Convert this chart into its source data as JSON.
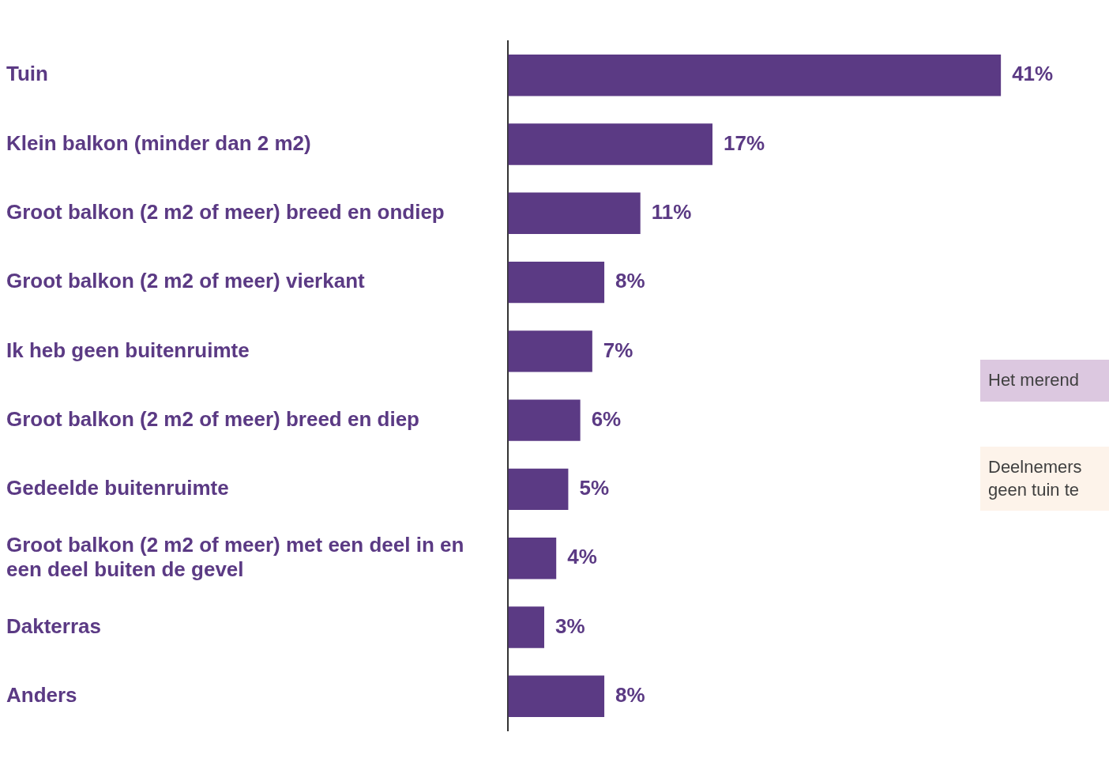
{
  "chart_data": {
    "type": "bar",
    "orientation": "horizontal",
    "categories": [
      "Tuin",
      "Klein balkon (minder dan 2 m2)",
      "Groot balkon (2 m2 of meer) breed en ondiep",
      "Groot balkon (2 m2 of meer) vierkant",
      "Ik heb geen buitenruimte",
      "Groot balkon (2 m2 of meer) breed en diep",
      "Gedeelde buitenruimte",
      "Groot balkon (2 m2 of meer) met een deel in en een deel buiten de gevel",
      "Dakterras",
      "Anders"
    ],
    "values": [
      41,
      17,
      11,
      8,
      7,
      6,
      5,
      4,
      3,
      8
    ],
    "value_labels": [
      "41%",
      "17%",
      "11%",
      "8%",
      "7%",
      "6%",
      "5%",
      "4%",
      "3%",
      "8%"
    ],
    "color": "#5b3a84",
    "grid": false,
    "legend": false,
    "annotations": [
      "Het merend",
      "Deelnemers geen tuin te"
    ]
  }
}
